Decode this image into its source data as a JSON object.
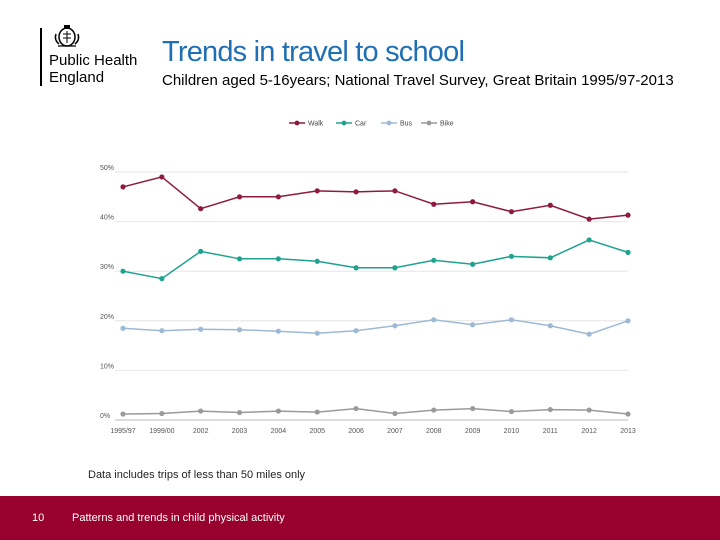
{
  "brand": {
    "name_line1": "Public Health",
    "name_line2": "England"
  },
  "title": "Trends in travel to school",
  "subtitle": "Children aged 5-16years; National Travel Survey, Great Britain 1995/97-2013",
  "note": "Data includes trips of less than 50 miles only",
  "footer": {
    "page_number": "10",
    "text": "Patterns and trends in child physical activity"
  },
  "colors": {
    "footer_bg": "#98002e",
    "title": "#1f6fb4"
  },
  "chart_data": {
    "type": "line",
    "categories": [
      "1995/97",
      "1999/00",
      "2002",
      "2003",
      "2004",
      "2005",
      "2006",
      "2007",
      "2008",
      "2009",
      "2010",
      "2011",
      "2012",
      "2013"
    ],
    "y_ticks": [
      "0%",
      "10%",
      "20%",
      "30%",
      "40%",
      "50%"
    ],
    "ylim": [
      0,
      50
    ],
    "grid": true,
    "legend_position": "top",
    "series": [
      {
        "name": "Walk",
        "color": "#8e1b3e",
        "values": [
          47,
          49,
          42.6,
          45,
          45,
          46.2,
          46,
          46.2,
          43.5,
          44,
          42,
          43.3,
          40.5,
          41.3
        ]
      },
      {
        "name": "Car",
        "color": "#1fa38e",
        "values": [
          30,
          28.5,
          34,
          32.5,
          32.5,
          32,
          30.7,
          30.7,
          32.2,
          31.4,
          33,
          32.7,
          36.3,
          33.8
        ]
      },
      {
        "name": "Bus",
        "color": "#9db9d6",
        "values": [
          18.5,
          18,
          18.3,
          18.2,
          17.9,
          17.5,
          18,
          19,
          20.2,
          19.2,
          20.2,
          19,
          17.3,
          20
        ]
      },
      {
        "name": "Bike",
        "color": "#9a9a9a",
        "values": [
          1.2,
          1.3,
          1.8,
          1.5,
          1.8,
          1.6,
          2.3,
          1.3,
          2,
          2.3,
          1.7,
          2.1,
          2,
          1.2
        ]
      }
    ]
  }
}
